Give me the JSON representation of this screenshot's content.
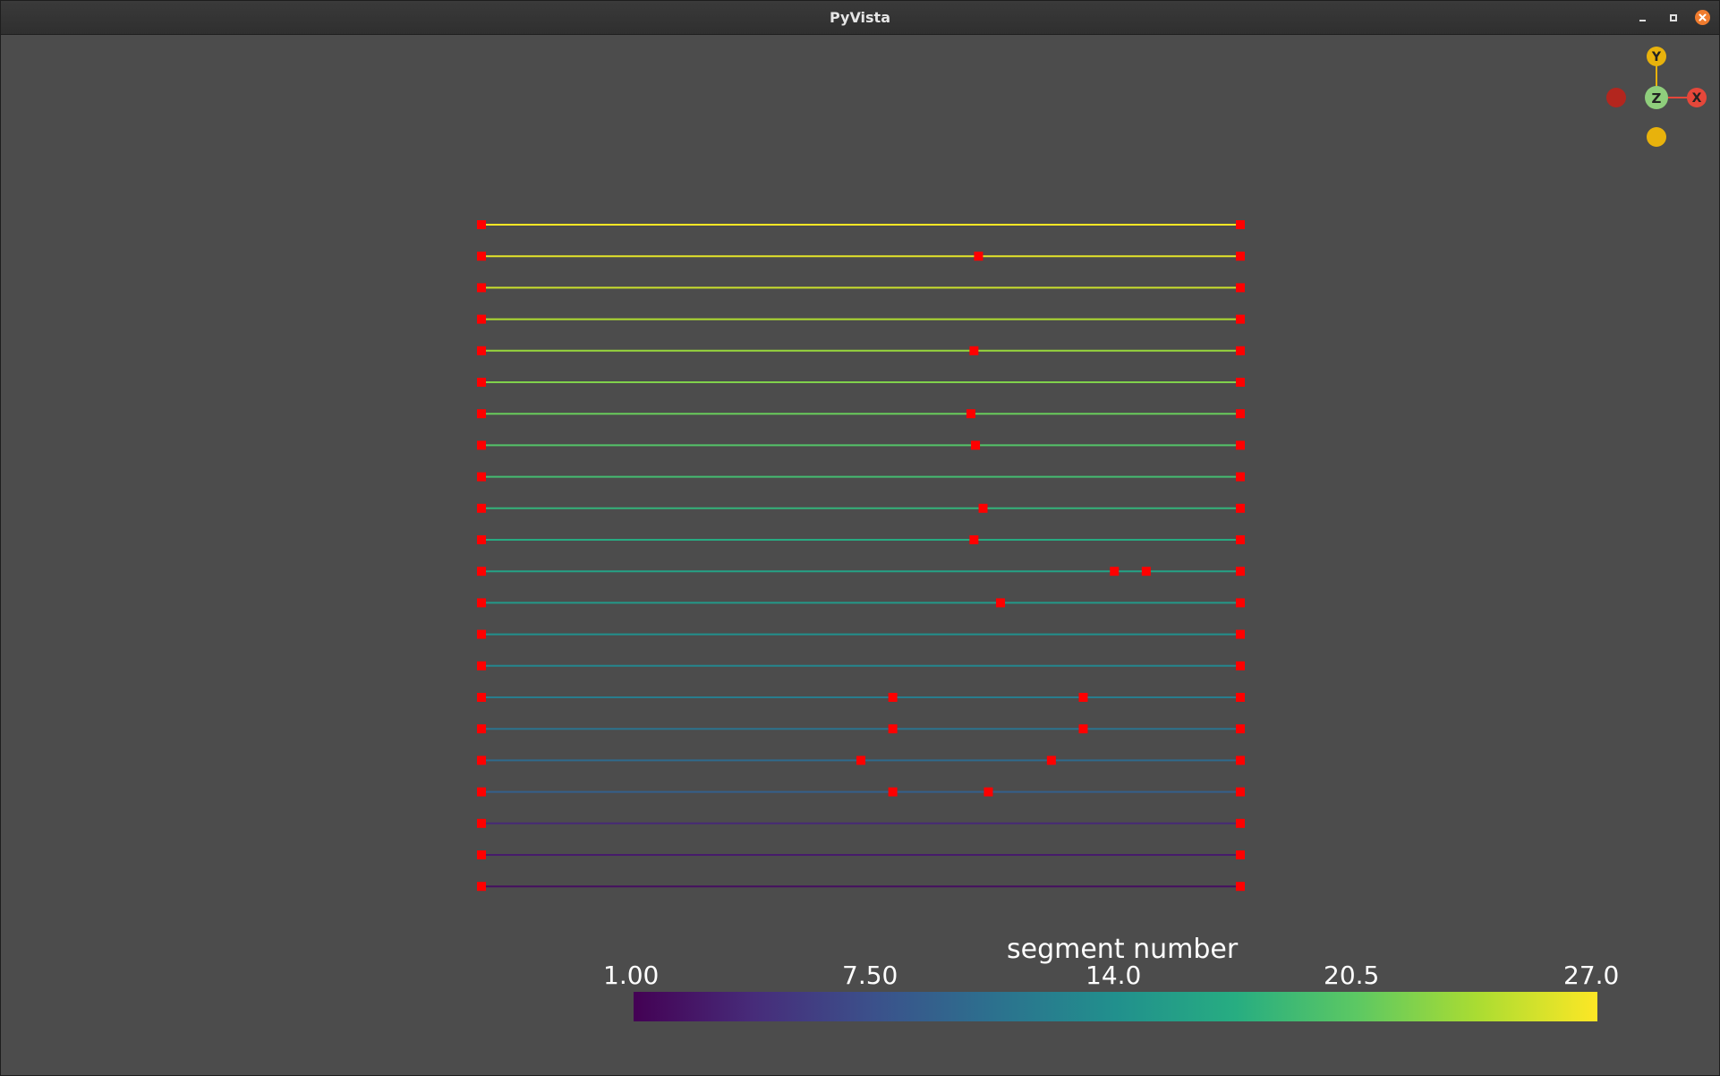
{
  "window": {
    "title": "PyVista",
    "controls": [
      "minimize-icon",
      "maximize-icon",
      "close-icon"
    ]
  },
  "scene": {
    "background_color": "#4c4c4c",
    "point_color": "#ff0000",
    "line_count": 22,
    "line_color_scale": "viridis",
    "lines": [
      {
        "value": 27,
        "interior_points": []
      },
      {
        "value": 26,
        "interior_points": [
          0.655
        ]
      },
      {
        "value": 25,
        "interior_points": []
      },
      {
        "value": 24,
        "interior_points": []
      },
      {
        "value": 23,
        "interior_points": [
          0.649
        ]
      },
      {
        "value": 22,
        "interior_points": []
      },
      {
        "value": 21,
        "interior_points": [
          0.645
        ]
      },
      {
        "value": 20,
        "interior_points": [
          0.651
        ]
      },
      {
        "value": 19,
        "interior_points": []
      },
      {
        "value": 18,
        "interior_points": [
          0.661
        ]
      },
      {
        "value": 17,
        "interior_points": [
          0.649
        ]
      },
      {
        "value": 16,
        "interior_points": [
          0.834,
          0.876
        ]
      },
      {
        "value": 15,
        "interior_points": [
          0.684
        ]
      },
      {
        "value": 14,
        "interior_points": []
      },
      {
        "value": 13,
        "interior_points": []
      },
      {
        "value": 12,
        "interior_points": [
          0.542,
          0.793
        ]
      },
      {
        "value": 11,
        "interior_points": [
          0.542,
          0.793
        ]
      },
      {
        "value": 10,
        "interior_points": [
          0.5,
          0.751
        ]
      },
      {
        "value": 9,
        "interior_points": [
          0.542,
          0.668
        ]
      },
      {
        "value": 4,
        "interior_points": []
      },
      {
        "value": 3,
        "interior_points": []
      },
      {
        "value": 2,
        "interior_points": []
      }
    ]
  },
  "orientation_widget": {
    "axes": [
      {
        "label": "Y",
        "color": "#e8b20c"
      },
      {
        "label": "Z",
        "color": "#8fce7c"
      },
      {
        "label": "X",
        "color": "#e5473a"
      }
    ],
    "negative_markers": [
      {
        "axis": "-X",
        "color": "#b3261e"
      },
      {
        "axis": "-Y",
        "color": "#e8b20c"
      }
    ]
  },
  "colorbar": {
    "title": "segment number",
    "min": 1.0,
    "max": 27.0,
    "colormap": "viridis",
    "tick_labels": [
      "1.00",
      "7.50",
      "14.0",
      "20.5",
      "27.0"
    ]
  }
}
